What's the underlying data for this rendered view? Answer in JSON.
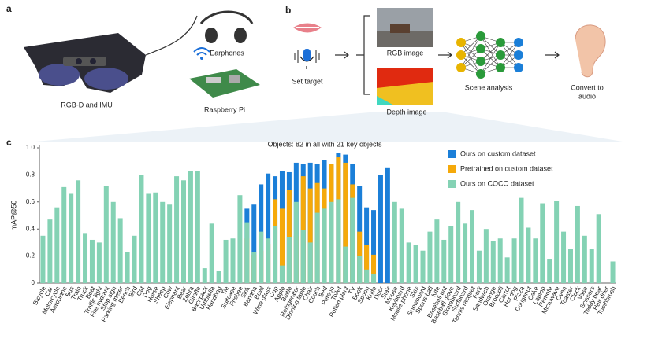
{
  "panels": {
    "a": {
      "letter": "a",
      "glasses_label": "RGB-D and IMU",
      "earphones_label": "Earphones",
      "pi_label": "Raspberry Pi"
    },
    "b": {
      "letter": "b",
      "target_label": "Set target",
      "rgb_label": "RGB image",
      "depth_label": "Depth image",
      "analysis_label": "Scene analysis",
      "audio_label": [
        "Convert to",
        "audio"
      ]
    },
    "c": {
      "letter": "c"
    }
  },
  "chart_data": {
    "type": "bar",
    "title": "Objects: 82 in all with 21 key objects",
    "y_label": "mAP@50",
    "categories": [
      "Bicycle",
      "Car",
      "Motorcycle",
      "Aeroplane",
      "Bus",
      "Train",
      "Truck",
      "Boat",
      "Traffic light",
      "Fire hydrant",
      "Stop sign",
      "Parking meter",
      "Bench",
      "Bird",
      "Cat",
      "Dog",
      "Horse",
      "Sheep",
      "Cow",
      "Elephant",
      "Bear",
      "Zebra",
      "Giraffe",
      "Backpack",
      "Umbrella",
      "Handbag",
      "Tie",
      "Suitcase",
      "Frisbee",
      "Sink",
      "Banana",
      "Bowl",
      "Wine glass",
      "Cup",
      "Apple",
      "Bottle",
      "Refrigerator",
      "Dinning table",
      "Chair",
      "Couch",
      "Bed",
      "Person",
      "Toilet",
      "Potted plant",
      "TV",
      "Book",
      "Spoon",
      "Knife",
      "Door",
      "Stair",
      "Mouse",
      "Keyboard",
      "Mobile phone",
      "Skis",
      "Snowboard",
      "Sports ball",
      "Kite",
      "Baseball bat",
      "Baseball glove",
      "Skateboard",
      "Surfboard",
      "Tennis racquet",
      "Fork",
      "Sandwich",
      "Orange",
      "Broccoli",
      "Carrot",
      "Hot dog",
      "Pizza",
      "Doughnut",
      "Cake",
      "Laptop",
      "Remote",
      "Microwave",
      "Oven",
      "Toaster",
      "Clock",
      "Vase",
      "Scissors",
      "Teddy bear",
      "Hair drier",
      "Toothbrush"
    ],
    "series": [
      {
        "name": "Ours on custom dataset",
        "color": "#1b7fd8",
        "values": [
          null,
          null,
          null,
          null,
          null,
          null,
          null,
          null,
          null,
          null,
          null,
          null,
          null,
          null,
          null,
          null,
          null,
          null,
          null,
          null,
          null,
          null,
          null,
          null,
          null,
          null,
          null,
          null,
          null,
          0.55,
          0.58,
          0.73,
          0.81,
          0.79,
          0.83,
          0.82,
          0.89,
          0.88,
          0.89,
          0.88,
          0.91,
          0.87,
          0.96,
          0.95,
          0.88,
          0.72,
          0.56,
          0.54,
          0.8,
          0.85,
          null,
          null,
          null,
          null,
          null,
          null,
          null,
          null,
          null,
          null,
          null,
          null,
          null,
          null,
          null,
          null,
          null,
          null,
          null,
          null,
          null,
          null,
          null,
          null,
          null,
          null,
          null,
          null,
          null,
          null,
          null,
          null
        ]
      },
      {
        "name": "Pretrained on custom dataset",
        "color": "#f5a90a",
        "values": [
          null,
          null,
          null,
          null,
          null,
          null,
          null,
          null,
          null,
          null,
          null,
          null,
          null,
          null,
          null,
          null,
          null,
          null,
          null,
          null,
          null,
          null,
          null,
          null,
          null,
          null,
          null,
          null,
          null,
          0.33,
          0.21,
          0.24,
          0.29,
          0.62,
          0.55,
          0.69,
          0.35,
          0.79,
          0.7,
          0.74,
          0.7,
          0.88,
          0.93,
          0.89,
          0.73,
          0.38,
          0.28,
          0.21,
          null,
          null,
          null,
          null,
          null,
          null,
          null,
          null,
          null,
          null,
          null,
          null,
          null,
          null,
          null,
          null,
          null,
          null,
          null,
          null,
          null,
          null,
          null,
          null,
          null,
          null,
          null,
          null,
          null,
          null,
          null,
          null,
          null,
          null
        ]
      },
      {
        "name": "Ours on COCO dataset",
        "color": "#84d2b4",
        "values": [
          0.35,
          0.47,
          0.56,
          0.71,
          0.66,
          0.76,
          0.37,
          0.32,
          0.3,
          0.72,
          0.6,
          0.48,
          0.23,
          0.35,
          0.8,
          0.66,
          0.67,
          0.6,
          0.58,
          0.79,
          0.76,
          0.83,
          0.83,
          0.11,
          0.44,
          0.09,
          0.32,
          0.33,
          0.65,
          0.45,
          0.23,
          0.38,
          0.33,
          0.42,
          0.13,
          0.34,
          0.6,
          0.39,
          0.3,
          0.52,
          0.55,
          0.6,
          0.62,
          0.27,
          0.63,
          0.2,
          0.1,
          0.07,
          null,
          null,
          0.6,
          0.55,
          0.3,
          0.28,
          0.24,
          0.38,
          0.47,
          0.32,
          0.42,
          0.6,
          0.44,
          0.54,
          0.24,
          0.4,
          0.31,
          0.33,
          0.19,
          0.33,
          0.63,
          0.41,
          0.33,
          0.59,
          0.18,
          0.61,
          0.38,
          0.25,
          0.57,
          0.35,
          0.25,
          0.51,
          0,
          0.16
        ]
      }
    ],
    "ylim": [
      0,
      1
    ],
    "yticks": [
      0,
      0.2,
      0.4,
      0.6,
      0.8,
      {
        "value": 1,
        "label": "1.0"
      }
    ],
    "legend": "upper right"
  }
}
